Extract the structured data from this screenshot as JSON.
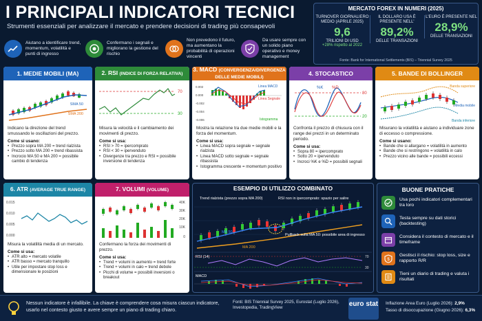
{
  "header": {
    "title": "I PRINCIPALI INDICATORI TECNICI",
    "subtitle": "Strumenti essenziali per analizzare il mercato e prendere decisioni di trading più consapevoli"
  },
  "intro": [
    {
      "icon": "trend-chart-icon",
      "text": "Aiutano a identificare trend, momentum, volatilità e punti di ingresso"
    },
    {
      "icon": "target-icon",
      "text": "Confermano i segnali e migliorano la gestione del rischio"
    },
    {
      "icon": "brain-icon",
      "text": "Non prevedono il futuro, ma aumentano la probabilità di operazioni vincenti"
    },
    {
      "icon": "shield-check-icon",
      "text": "Da usare sempre con un solido piano operativo e money management"
    }
  ],
  "forex": {
    "title": "MERCATO FOREX IN NUMERI (2025)",
    "stats": [
      {
        "label": "TURNOVER GIORNALIERO MEDIO (APRILE 2025)",
        "value": "9,6",
        "sub": "TRILIONI DI USD",
        "extra": "+28% rispetto al 2022"
      },
      {
        "label": "IL DOLLARO USA È PRESENTE NELL'",
        "value": "89,2%",
        "sub": "DELLE TRANSAZIONI",
        "extra": ""
      },
      {
        "label": "L'EURO È PRESENTE NEL",
        "value": "28,9%",
        "sub": "DELLE TRANSAZIONI",
        "extra": ""
      }
    ],
    "source": "Fonte: Bank for International Settlements (BIS) – Triennial Survey 2025"
  },
  "cards": [
    {
      "num": "1.",
      "title": "MEDIE MOBILI (MA)",
      "subtitle": "",
      "color": "#1e63b8",
      "desc": "Indicano la direzione del trend smussando le oscillazioni del prezzo.",
      "how": "Come si usano:",
      "bullets": [
        "Prezzo sopra MA 200 = trend rialzista",
        "Prezzo sotto MA 200 = trend ribassista",
        "Incrocio MA 50 e MA 200 = possibile cambio di tendenza"
      ],
      "chart_labels": [
        "SMA 50",
        "SMA 200"
      ]
    },
    {
      "num": "2.",
      "title": "RSI",
      "subtitle": "(INDICE DI FORZA RELATIVA)",
      "color": "#2e8b3a",
      "desc": "Misura la velocità e il cambiamento dei movimenti di prezzo.",
      "how": "Come si usa:",
      "bullets": [
        "RSI > 70 = ipercomprato",
        "RSI < 30 = ipervenduto",
        "Divergenze tra prezzo e RSI = possibile inversione di tendenza"
      ],
      "chart_labels": [
        "70",
        "30"
      ]
    },
    {
      "num": "3.",
      "title": "MACD",
      "subtitle": "(CONVERGENZA/DIVERGENZA DELLE MEDIE MOBILI)",
      "color": "#e0731c",
      "desc": "Mostra la relazione tra due medie mobili e la forza del momentum.",
      "how": "Come si usa:",
      "bullets": [
        "Linea MACD sopra segnale = segnale rialzista",
        "Linea MACD sotto segnale = segnale ribassista",
        "Istogramma crescente = momentum positivo"
      ],
      "chart_labels": [
        "Linea MACD",
        "Linea Segnale",
        "Istogramma",
        "0.002",
        "0.000",
        "-0.002",
        "-0.004",
        "-0.006"
      ]
    },
    {
      "num": "4.",
      "title": "STOCASTICO",
      "subtitle": "",
      "color": "#7b3fa8",
      "desc": "Confronta il prezzo di chiusura con il range dei prezzi in un determinato periodo.",
      "how": "Come si usa:",
      "bullets": [
        "Sopra 80 = ipercomprato",
        "Sotto 20 = ipervenduto",
        "Incroci %K e %D = possibili segnali"
      ],
      "chart_labels": [
        "%K",
        "%D",
        "80",
        "20"
      ]
    },
    {
      "num": "5.",
      "title": "BANDE DI BOLLINGER",
      "subtitle": "",
      "color": "#e08a14",
      "desc": "Misurano la volatilità e aiutano a individuare zone di eccesso o compressione.",
      "how": "Come si usano:",
      "bullets": [
        "Bande che si allargano = volatilità in aumento",
        "Bande che si restringono = volatilità in calo",
        "Prezzo vicino alle bande = possibili eccessi"
      ],
      "chart_labels": [
        "Banda superiore",
        "Media mobile",
        "Banda inferiore"
      ]
    },
    {
      "num": "6.",
      "title": "ATR",
      "subtitle": "(AVERAGE TRUE RANGE)",
      "color": "#1d86a6",
      "desc": "Misura la volatilità media di un mercato.",
      "how": "Come si usa:",
      "bullets": [
        "ATR alto = mercato volatile",
        "ATR basso = mercato tranquillo",
        "Utile per impostare stop loss e dimensionare le posizioni"
      ],
      "chart_labels": [
        "0.015",
        "0.010",
        "0.005",
        "0.000"
      ]
    },
    {
      "num": "7.",
      "title": "VOLUMI",
      "subtitle": "(VOLUME)",
      "color": "#c0206b",
      "desc": "Confermano la forza dei movimenti di prezzo.",
      "how": "Come si usa:",
      "bullets": [
        "Trend + volumi in aumento = trend forte",
        "Trend + volumi in calo = trend debole",
        "Picchi di volume = possibili inversioni o breakout"
      ],
      "chart_labels": [
        "40K",
        "30K",
        "20K",
        "10K",
        "0"
      ]
    }
  ],
  "example": {
    "title": "ESEMPIO DI UTILIZZO COMBINATO",
    "annotations": [
      "Trend rialzista (prezzo sopra MA 200)",
      "RSI non in ipercomprato: spazio per salire",
      "Pullback sulla MA 50: possibile area di ingresso",
      "MA 50",
      "MA 200",
      "RSI (14)",
      "MACD",
      "70",
      "30"
    ]
  },
  "good_practices": {
    "title": "BUONE PRATICHE",
    "items": [
      {
        "icon": "check-circle-icon",
        "text": "Usa pochi indicatori complementari tra loro",
        "color": "#2e8b3a"
      },
      {
        "icon": "magnifier-icon",
        "text": "Testa sempre su dati storici (backtesting)",
        "color": "#1e63b8"
      },
      {
        "icon": "calendar-icon",
        "text": "Considera il contesto di mercato e il timeframe",
        "color": "#7b3fa8"
      },
      {
        "icon": "shield-dollar-icon",
        "text": "Gestisci il rischio: stop loss, size e rapporto R/R",
        "color": "#e0731c"
      },
      {
        "icon": "notebook-icon",
        "text": "Tieni un diario di trading e valuta i risultati",
        "color": "#e08a14"
      }
    ]
  },
  "footer": {
    "message": "Nessun indicatore è infallibile. La chiave è comprendere cosa misura ciascun indicatore, usarlo nel contesto giusto e avere sempre un piano di trading chiaro.",
    "sources": "Fonti: BIS Triennial Survey 2025, Eurostat (Luglio 2026), Investopedia, TradingView",
    "logo": "euro stat",
    "stat1_label": "Inflazione Area Euro (Luglio 2026):",
    "stat1_value": "2,9%",
    "stat2_label": "Tasso di disoccupazione (Giugno 2026):",
    "stat2_value": "6,3%"
  }
}
